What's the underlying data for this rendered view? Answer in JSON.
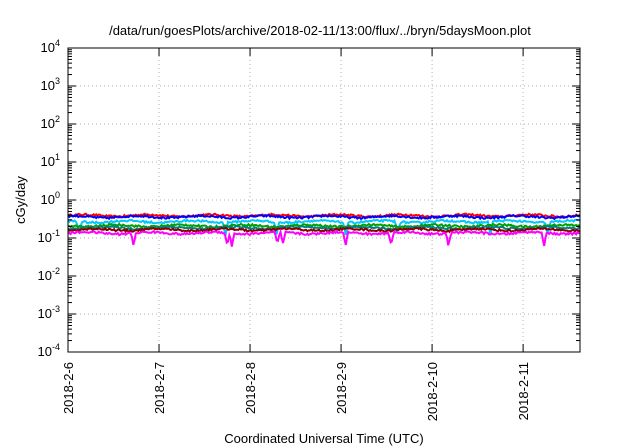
{
  "chart_data": {
    "type": "line",
    "title": "/data/run/goesPlots/archive/2018-02-11/13:00/flux/../bryn/5daysMoon.plot",
    "xlabel": "Coordinated Universal Time (UTC)",
    "ylabel": "cGy/day",
    "yscale": "log",
    "ylim": [
      0.0001,
      10000
    ],
    "y_ticks": [
      {
        "mant": "10",
        "exp": "4",
        "value": 10000
      },
      {
        "mant": "10",
        "exp": "3",
        "value": 1000
      },
      {
        "mant": "10",
        "exp": "2",
        "value": 100
      },
      {
        "mant": "10",
        "exp": "1",
        "value": 10
      },
      {
        "mant": "10",
        "exp": "0",
        "value": 1
      },
      {
        "mant": "10",
        "exp": "-1",
        "value": 0.1
      },
      {
        "mant": "10",
        "exp": "-2",
        "value": 0.01
      },
      {
        "mant": "10",
        "exp": "-3",
        "value": 0.001
      },
      {
        "mant": "10",
        "exp": "-4",
        "value": 0.0001
      }
    ],
    "x_start": "2018-02-06 00:00",
    "x_end": "2018-02-11 15:00",
    "x_ticks": [
      "2018-2-6",
      "2018-2-7",
      "2018-2-8",
      "2018-2-9",
      "2018-2-10",
      "2018-2-11"
    ],
    "grid": true,
    "series": [
      {
        "color": "#ff0000",
        "base": 0.39,
        "dips": []
      },
      {
        "color": "#0000ff",
        "base": 0.36,
        "dips": []
      },
      {
        "color": "#00c8ff",
        "base": 0.27,
        "dips": [
          0.12,
          1.73,
          2.29,
          3.05,
          3.62,
          4.64,
          5.27
        ]
      },
      {
        "color": "#00a000",
        "base": 0.21,
        "dips": []
      },
      {
        "color": "#008080",
        "base": 0.185,
        "dips": []
      },
      {
        "color": "#8b0000",
        "base": 0.165,
        "dips": []
      },
      {
        "color": "#ff00ff",
        "base": 0.135,
        "dips": [
          0.72,
          1.75,
          1.8,
          2.3,
          2.36,
          3.05,
          3.55,
          4.18,
          5.23
        ]
      }
    ]
  }
}
